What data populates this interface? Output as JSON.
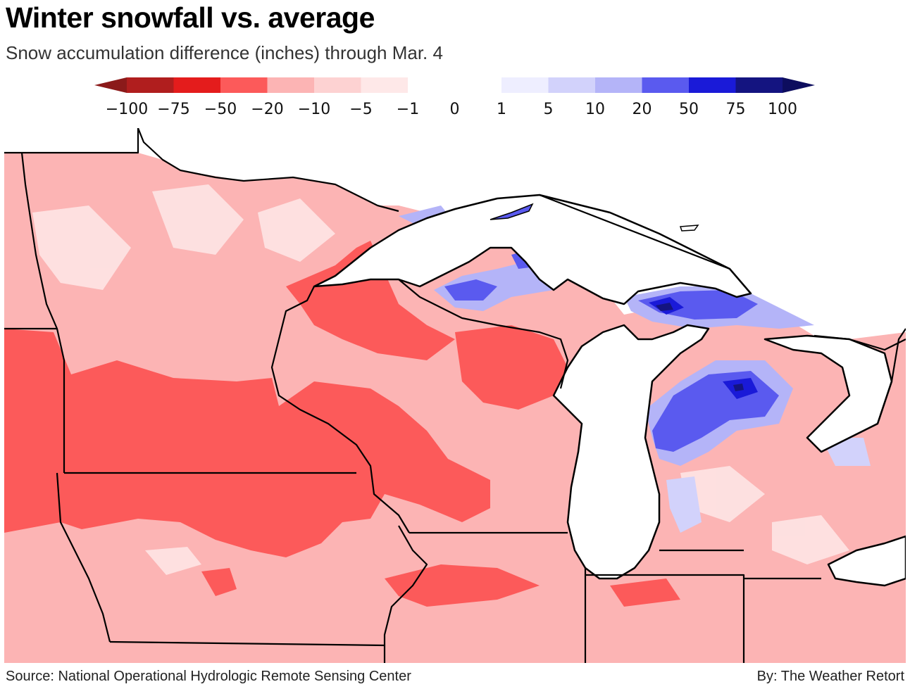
{
  "header": {
    "title": "Winter snowfall vs. average",
    "subtitle": "Snow accumulation difference (inches) through Mar. 4"
  },
  "legend": {
    "ticks": [
      "−100",
      "−75",
      "−50",
      "−20",
      "−10",
      "−5",
      "−1",
      "0",
      "1",
      "5",
      "10",
      "20",
      "50",
      "75",
      "100"
    ],
    "colors": [
      "#b01e1e",
      "#e41c1c",
      "#fc5a5a",
      "#fcb4b4",
      "#fdd2d2",
      "#fee8e8",
      "#ffffff",
      "#ffffff",
      "#eeeeff",
      "#d2d2fb",
      "#b4b4f8",
      "#5a5aef",
      "#1a1ad8",
      "#141480"
    ],
    "under_color": "#8b1a1a",
    "over_color": "#0d0d5e"
  },
  "map": {
    "land_base_color": "#fcb4b4",
    "water_color": "#ffffff",
    "border_color": "#000000"
  },
  "footer": {
    "source": "Source: National Operational Hydrologic Remote Sensing Center",
    "byline": "By: The Weather Retort"
  }
}
